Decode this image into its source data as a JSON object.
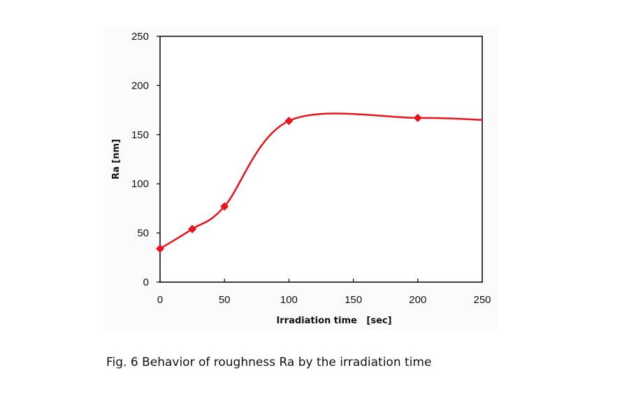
{
  "chart_data": {
    "type": "line",
    "title": "",
    "caption": "Fig. 6 Behavior of roughness Ra by the irradiation time",
    "xlabel": "Irradiation time   [sec]",
    "ylabel": "Ra [nm]",
    "xlim": [
      0,
      250
    ],
    "ylim": [
      0,
      250
    ],
    "xticks": [
      "0",
      "50",
      "100",
      "150",
      "200",
      "250"
    ],
    "yticks": [
      "0",
      "50",
      "100",
      "150",
      "200",
      "250"
    ],
    "grid": false,
    "legend": "none",
    "series": [
      {
        "name": "Ra",
        "color": "#e8141c",
        "marker": "diamond",
        "smooth": true,
        "x": [
          0,
          25,
          50,
          100,
          200
        ],
        "y": [
          34,
          54,
          77,
          164,
          167
        ],
        "line_end": [
          250,
          165
        ]
      }
    ]
  }
}
